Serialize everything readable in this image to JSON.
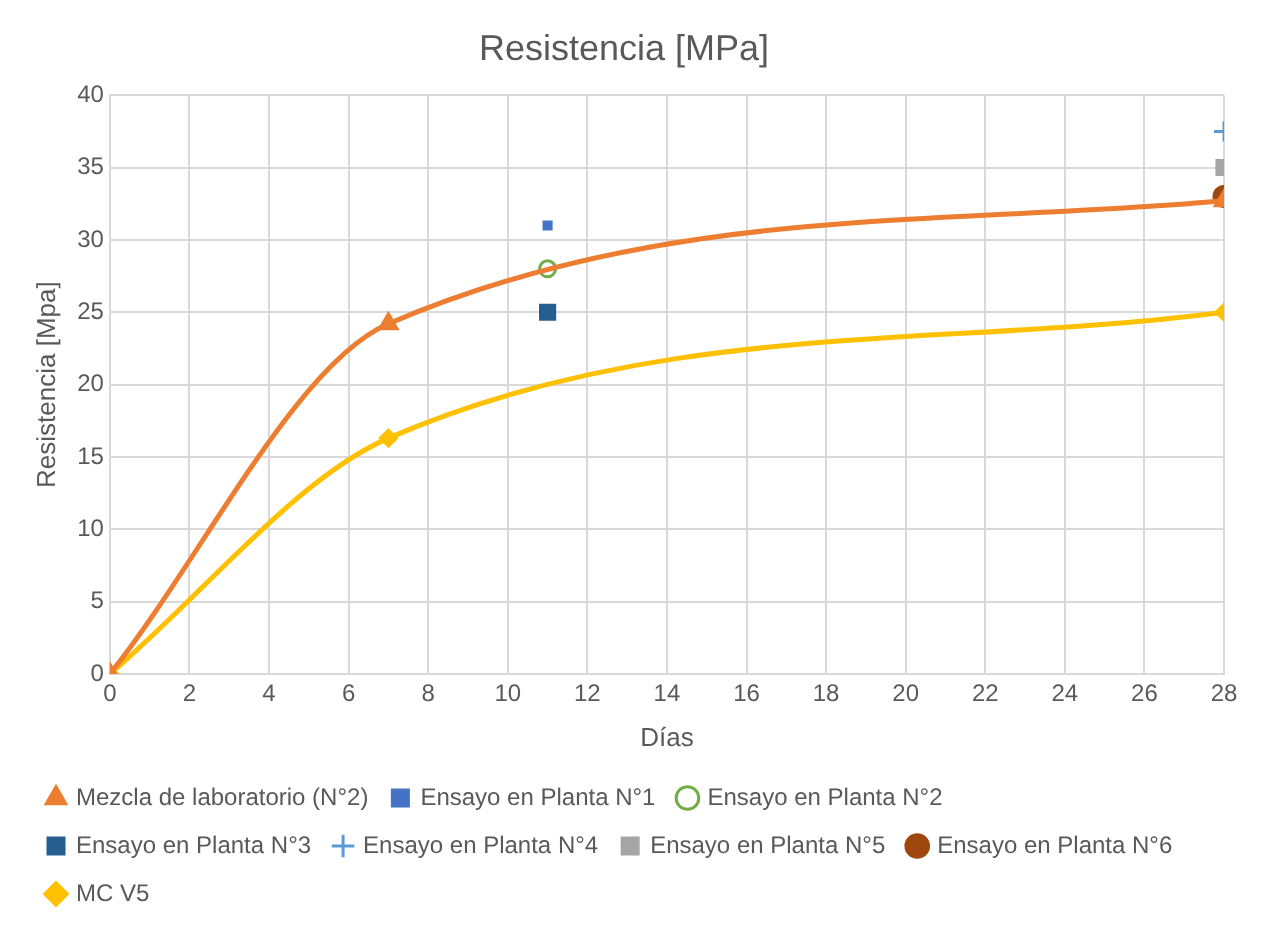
{
  "chart_data": {
    "type": "line",
    "title": "Resistencia [MPa]",
    "xlabel": "Días",
    "ylabel": "Resistencia [Mpa]",
    "xlim": [
      0,
      28
    ],
    "xticks": [
      0,
      2,
      4,
      6,
      8,
      10,
      12,
      14,
      16,
      18,
      20,
      22,
      24,
      26,
      28
    ],
    "ylim": [
      0,
      40
    ],
    "yticks": [
      0,
      5,
      10,
      15,
      20,
      25,
      30,
      35,
      40
    ],
    "grid": true,
    "legend": "bottom",
    "series": [
      {
        "name": "Mezcla de laboratorio (N°2)",
        "color": "#ed7d31",
        "marker": "triangle",
        "x": [
          0,
          7,
          28
        ],
        "values": [
          0,
          24.2,
          32.7
        ]
      },
      {
        "name": "Ensayo en Planta N°1",
        "type": "scatter",
        "color": "#4472c4",
        "x": [
          11
        ],
        "values": [
          31
        ]
      },
      {
        "name": "Ensayo en Planta N°2",
        "type": "scatter",
        "color": "#70ad47",
        "marker": "open-circle",
        "x": [
          11
        ],
        "values": [
          28
        ]
      },
      {
        "name": "Ensayo en Planta N°3",
        "type": "scatter",
        "color": "#255e91",
        "marker": "square",
        "x": [
          11
        ],
        "values": [
          25
        ]
      },
      {
        "name": "Ensayo en Planta N°4",
        "type": "scatter",
        "color": "#5b9bd5",
        "marker": "cross",
        "x": [
          28
        ],
        "values": [
          37.5
        ]
      },
      {
        "name": "Ensayo en Planta N°5",
        "type": "scatter",
        "color": "#a5a5a5",
        "marker": "square",
        "x": [
          28
        ],
        "values": [
          35
        ]
      },
      {
        "name": "Ensayo en Planta N°6",
        "type": "scatter",
        "color": "#9e480e",
        "marker": "circle",
        "x": [
          28
        ],
        "values": [
          33
        ]
      },
      {
        "name": "MC V5",
        "color": "#ffc000",
        "marker": "diamond",
        "x": [
          0,
          7,
          28
        ],
        "values": [
          0,
          16.3,
          25
        ]
      }
    ]
  }
}
